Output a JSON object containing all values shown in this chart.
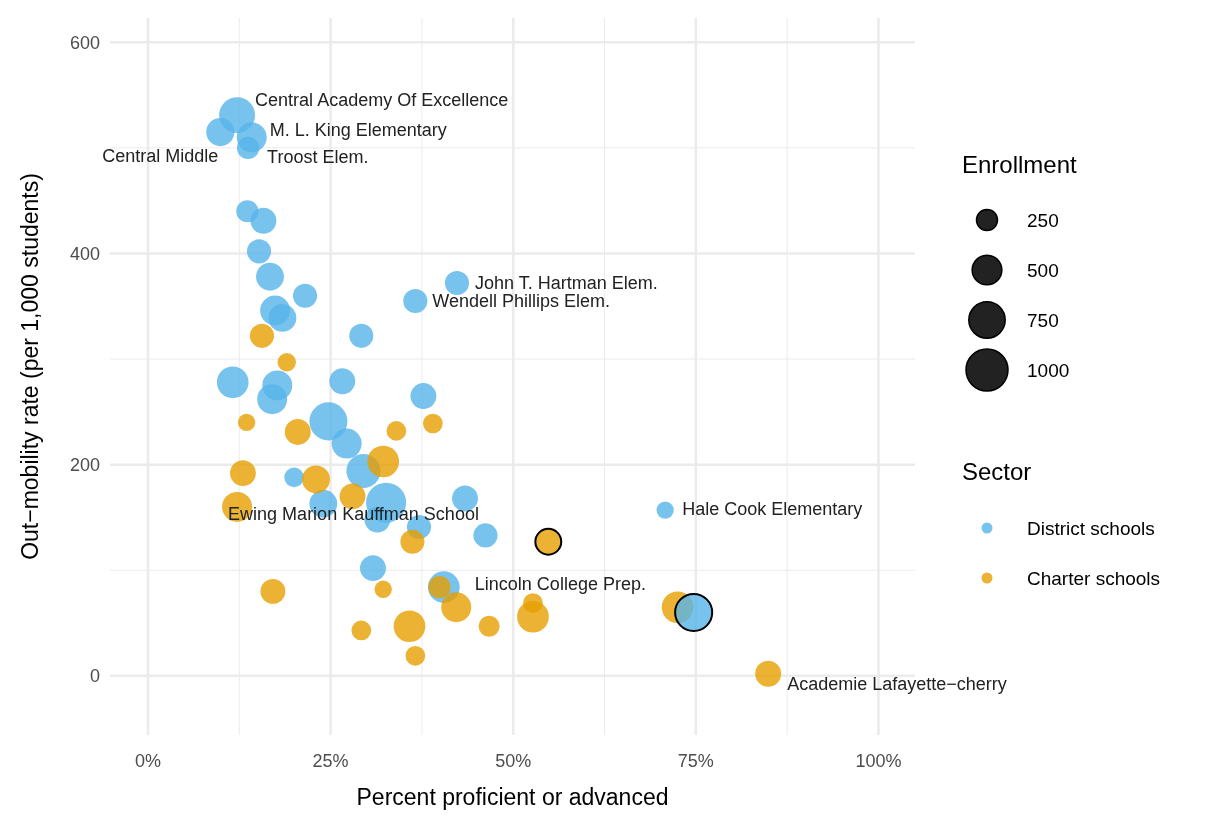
{
  "chart_data": {
    "type": "bubble",
    "xlabel": "Percent proficient or advanced",
    "ylabel": "Out−mobility rate (per 1,000 students)",
    "legend_title": "Sector",
    "xlim": [
      -5.2,
      105
    ],
    "ylim": [
      -56,
      623
    ],
    "xticks": [
      {
        "value": 0,
        "label": "0%"
      },
      {
        "value": 25,
        "label": "25%"
      },
      {
        "value": 50,
        "label": "50%"
      },
      {
        "value": 75,
        "label": "75%"
      },
      {
        "value": 100,
        "label": "100%"
      }
    ],
    "yticks": [
      0,
      200,
      400,
      600
    ],
    "grid": true,
    "legend": "right",
    "size_legend": [
      {
        "value": 250,
        "label": "250"
      },
      {
        "value": 500,
        "label": "500"
      },
      {
        "value": 750,
        "label": "750"
      },
      {
        "value": 1000,
        "label": "1000"
      }
    ],
    "series": [
      {
        "name": "District schools",
        "color": "#56b4e9",
        "x": [
          12.2,
          9.9,
          14.2,
          13.7,
          42.3,
          36.6,
          70.8,
          40.5,
          13.6,
          15.8,
          15.2,
          16.7,
          21.5,
          17.4,
          18.4,
          29.2,
          11.6,
          17.7,
          17.0,
          26.6,
          37.7,
          24.7,
          27.2,
          29.5,
          20.0,
          24.0,
          32.6,
          31.4,
          43.4,
          37.1,
          46.2,
          30.8
        ],
        "values": [
          531,
          515,
          510,
          500,
          372,
          355,
          157,
          84,
          440,
          431,
          402,
          378,
          360,
          346,
          339,
          322,
          278,
          275,
          262,
          279,
          265,
          241,
          220,
          194,
          188,
          163,
          164,
          148,
          168,
          141,
          133,
          102
        ],
        "sizes": [
          730,
          450,
          510,
          280,
          330,
          330,
          170,
          570,
          280,
          380,
          330,
          440,
          330,
          510,
          440,
          330,
          570,
          510,
          510,
          380,
          380,
          820,
          510,
          660,
          220,
          440,
          910,
          380,
          380,
          330,
          330,
          380
        ]
      },
      {
        "name": "Charter schools",
        "color": "#e69f00",
        "x": [
          12.2,
          84.9,
          15.6,
          19.0,
          13.5,
          20.5,
          34.0,
          39.0,
          32.2,
          13.0,
          23.0,
          28.0,
          36.2,
          17.1,
          32.2,
          39.9,
          42.2,
          52.7,
          52.7,
          46.7,
          35.8,
          29.2,
          36.6,
          72.5
        ],
        "values": [
          160,
          2,
          322,
          297,
          240,
          231,
          232,
          239,
          203,
          192,
          186,
          170,
          127,
          80,
          82,
          84,
          65,
          56,
          69,
          47,
          47,
          43,
          19,
          65
        ],
        "sizes": [
          510,
          380,
          330,
          190,
          170,
          380,
          220,
          220,
          570,
          380,
          440,
          380,
          330,
          350,
          170,
          280,
          510,
          570,
          220,
          250,
          570,
          220,
          220,
          570
        ]
      },
      {
        "color": "#e69f00",
        "x": [
          54.8
        ],
        "values": [
          127
        ],
        "sizes": [
          380
        ]
      },
      {
        "color": "#56b4e9",
        "x": [
          74.7
        ],
        "values": [
          60
        ],
        "sizes": [
          780
        ]
      }
    ],
    "annotations": [
      "Enrollment",
      {
        "text": "Central Academy Of Excellence",
        "x": 12.2,
        "y": 531
      },
      {
        "text": "M. L. King  Elementary",
        "x": 14.2,
        "y": 510
      },
      {
        "text": "Central Middle",
        "x": 9.9,
        "y": 515
      },
      {
        "text": "Troost Elem.",
        "x": 13.7,
        "y": 500
      },
      {
        "text": "John T. Hartman Elem.",
        "x": 42.3,
        "y": 372
      },
      {
        "text": "Wendell Phillips Elem.",
        "x": 36.6,
        "y": 355
      },
      {
        "text": "Hale Cook Elementary",
        "x": 70.8,
        "y": 157
      },
      {
        "text": "Ewing Marion Kauffman School",
        "x": 12.2,
        "y": 160
      },
      {
        "text": "Lincoln College Prep.",
        "x": 40.5,
        "y": 84
      },
      {
        "text": "Academie Lafayette−cherry",
        "x": 84.9,
        "y": 2
      }
    ]
  }
}
